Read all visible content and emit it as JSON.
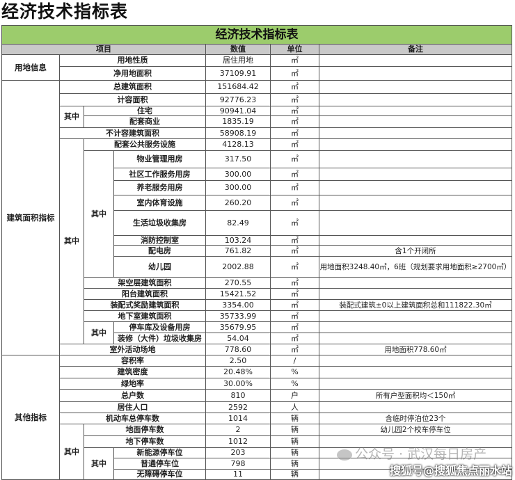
{
  "title": "经济技术指标表",
  "table": {
    "banner": "经济技术指标表",
    "headers": {
      "item": "项目",
      "value": "数值",
      "unit": "单位",
      "remark": "备注"
    },
    "sections": [
      "用地信息",
      "建筑面积指标",
      "其他指标"
    ],
    "sub_label": "其中",
    "rows": [
      {
        "item": "用地性质",
        "value": "居住用地",
        "unit": "㎡",
        "remark": ""
      },
      {
        "item": "净用地面积",
        "value": "37109.91",
        "unit": "㎡",
        "remark": ""
      },
      {
        "item": "总建筑面积",
        "value": "151684.42",
        "unit": "㎡",
        "remark": ""
      },
      {
        "item": "计容面积",
        "value": "92776.23",
        "unit": "㎡",
        "remark": ""
      },
      {
        "item": "住宅",
        "value": "90941.04",
        "unit": "㎡",
        "remark": ""
      },
      {
        "item": "配套商业",
        "value": "1835.19",
        "unit": "㎡",
        "remark": ""
      },
      {
        "item": "不计容建筑面积",
        "value": "58908.19",
        "unit": "㎡",
        "remark": ""
      },
      {
        "item": "配套公共服务设施",
        "value": "4128.13",
        "unit": "㎡",
        "remark": ""
      },
      {
        "item": "物业管理用房",
        "value": "317.50",
        "unit": "㎡",
        "remark": ""
      },
      {
        "item": "社区工作服务用房",
        "value": "300.00",
        "unit": "㎡",
        "remark": ""
      },
      {
        "item": "养老服务用房",
        "value": "300.00",
        "unit": "㎡",
        "remark": ""
      },
      {
        "item": "室内体育设施",
        "value": "260.20",
        "unit": "㎡",
        "remark": ""
      },
      {
        "item": "生活垃圾收集房",
        "value": "82.49",
        "unit": "㎡",
        "remark": ""
      },
      {
        "item": "消防控制室",
        "value": "103.24",
        "unit": "㎡",
        "remark": ""
      },
      {
        "item": "配电房",
        "value": "761.82",
        "unit": "㎡",
        "remark": "含1个开闭所"
      },
      {
        "item": "幼儿园",
        "value": "2002.88",
        "unit": "㎡",
        "remark": "用地面积3248.40㎡，6班（规划要求用地面积≥2700㎡）"
      },
      {
        "item": "架空层建筑面积",
        "value": "270.55",
        "unit": "㎡",
        "remark": ""
      },
      {
        "item": "阳台建筑面积",
        "value": "15421.52",
        "unit": "㎡",
        "remark": ""
      },
      {
        "item": "装配式奖励建筑面积",
        "value": "3354.00",
        "unit": "㎡",
        "remark": "装配式建筑±0以上建筑面积总和111822.30㎡"
      },
      {
        "item": "地下室建筑面积",
        "value": "35733.99",
        "unit": "㎡",
        "remark": ""
      },
      {
        "item": "停车库及设备用房",
        "value": "35679.95",
        "unit": "㎡",
        "remark": ""
      },
      {
        "item": "装修（大件）垃圾收集房",
        "value": "54.04",
        "unit": "㎡",
        "remark": ""
      },
      {
        "item": "室外活动场地",
        "value": "778.60",
        "unit": "㎡",
        "remark": "用地面积778.60㎡"
      },
      {
        "item": "容积率",
        "value": "2.50",
        "unit": "/",
        "remark": ""
      },
      {
        "item": "建筑密度",
        "value": "20.48%",
        "unit": "%",
        "remark": ""
      },
      {
        "item": "绿地率",
        "value": "30.00%",
        "unit": "%",
        "remark": ""
      },
      {
        "item": "总户数",
        "value": "810",
        "unit": "户",
        "remark": "所有户型面积均＜150㎡"
      },
      {
        "item": "居住人口",
        "value": "2592",
        "unit": "人",
        "remark": ""
      },
      {
        "item": "机动车总停车数",
        "value": "1014",
        "unit": "辆",
        "remark": "含临时停泊位23个"
      },
      {
        "item": "地面停车数",
        "value": "2",
        "unit": "辆",
        "remark": "幼儿园2个校车停车位"
      },
      {
        "item": "地下停车数",
        "value": "1012",
        "unit": "辆",
        "remark": ""
      },
      {
        "item": "新能源停车位",
        "value": "203",
        "unit": "辆",
        "remark": ""
      },
      {
        "item": "普通停车位",
        "value": "798",
        "unit": "辆",
        "remark": ""
      },
      {
        "item": "无障碍停车位",
        "value": "11",
        "unit": "辆",
        "remark": ""
      }
    ]
  },
  "watermarks": {
    "wechat": "公众号 · 武汉每日房产",
    "sohu": "搜狐号@搜狐焦点丽水站"
  },
  "colors": {
    "banner": "#9ccc6c",
    "header": "#c9c9c9"
  }
}
